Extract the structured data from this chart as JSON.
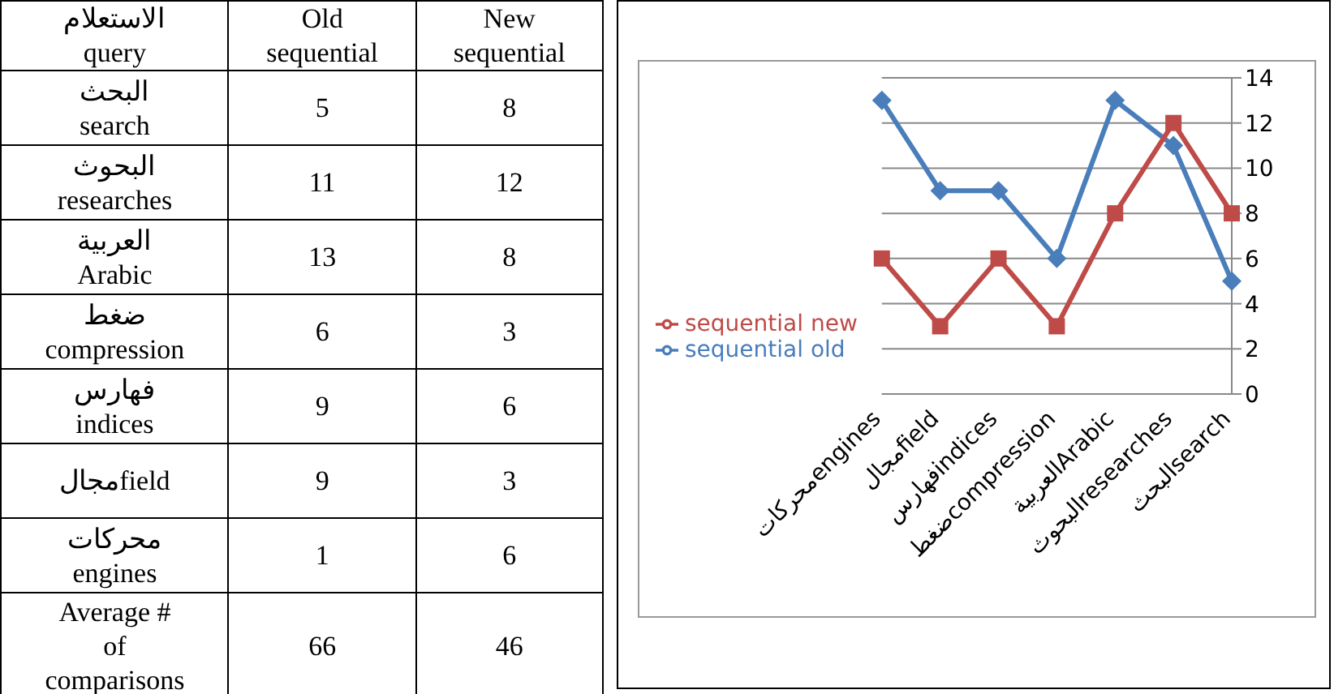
{
  "chart_data": [
    {
      "type": "other",
      "xlabel": "الاستعلام\nquery",
      "categories": [
        "البحث\nsearch",
        "البحوث\nresearches",
        "العربية\nArabic",
        "ضغط\ncompression",
        "فهارس\nindices",
        "مجالfield",
        "محركات\nengines",
        "Average #\nof\ncomparisons"
      ],
      "series": [
        {
          "name": "Old\nsequential",
          "values": [
            5,
            11,
            13,
            6,
            9,
            9,
            1,
            66
          ]
        },
        {
          "name": "New\nsequential",
          "values": [
            8,
            12,
            8,
            3,
            6,
            3,
            6,
            46
          ]
        }
      ],
      "data_labels": true
    },
    {
      "type": "line",
      "categories": [
        "محركاتengines",
        "مجالfield",
        "فهارسindices",
        "ضغطcompression",
        "العربيةArabic",
        "البحوثresearches",
        "البحثsearch"
      ],
      "series": [
        {
          "name": "sequential old",
          "color": "#4a7ebb",
          "marker": "diamond",
          "values": [
            13,
            9,
            9,
            6,
            13,
            11,
            5
          ]
        },
        {
          "name": "sequential new",
          "color": "#be4b48",
          "marker": "square",
          "values": [
            6,
            3,
            6,
            3,
            8,
            12,
            8
          ]
        }
      ],
      "ylim": [
        0,
        14
      ],
      "yticks": [
        0,
        2,
        4,
        6,
        8,
        10,
        12,
        14
      ],
      "grid": "y",
      "legend": "left"
    }
  ]
}
